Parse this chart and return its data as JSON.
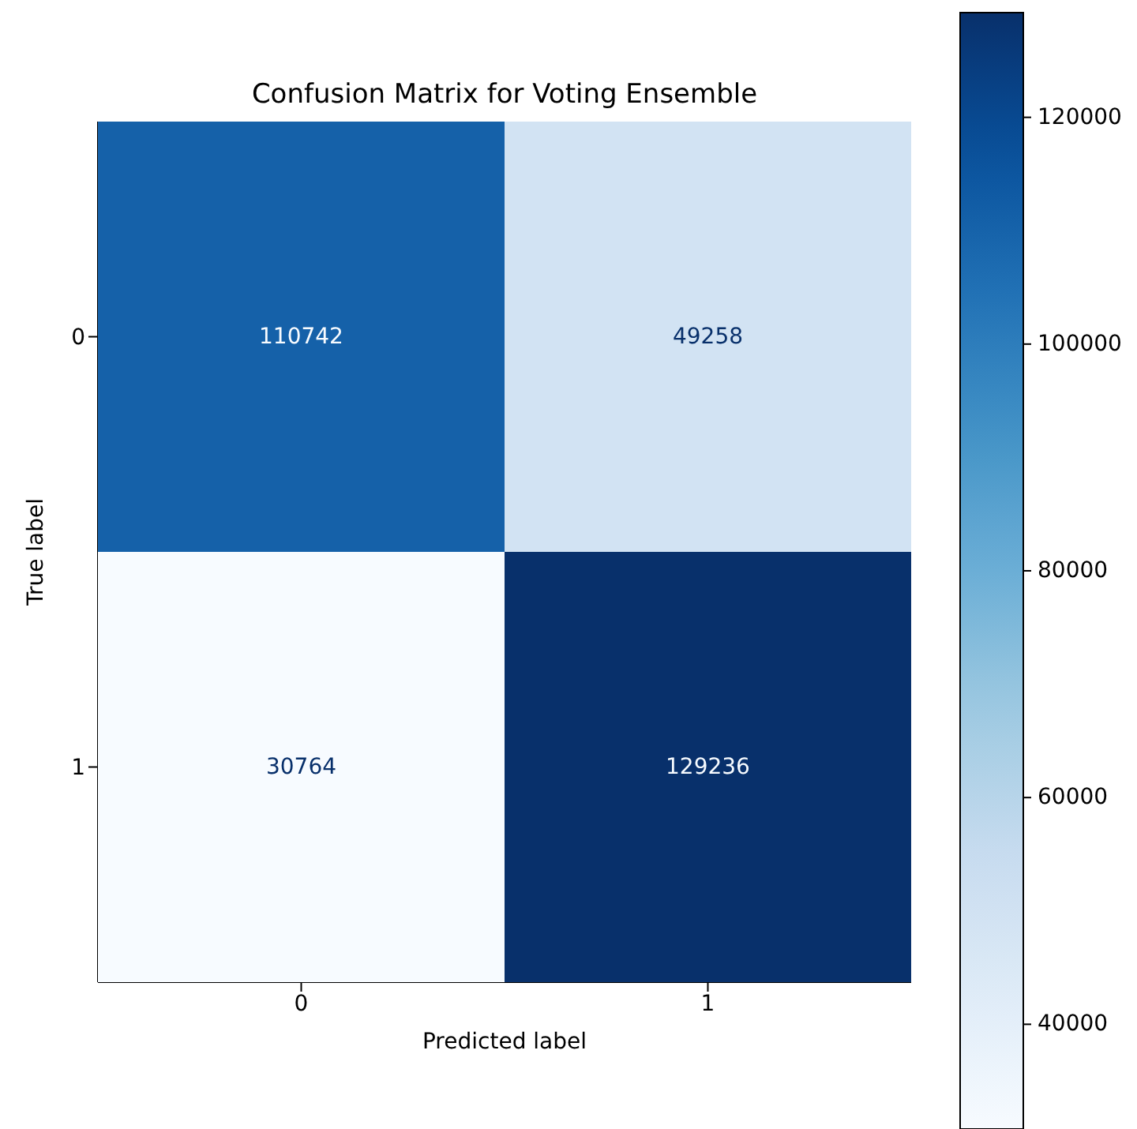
{
  "chart_data": {
    "type": "heatmap",
    "title": "Confusion Matrix for Voting Ensemble",
    "xlabel": "Predicted label",
    "ylabel": "True label",
    "categories": [
      "0",
      "1"
    ],
    "y_categories": [
      "0",
      "1"
    ],
    "cells": [
      [
        110742,
        49258
      ],
      [
        30764,
        129236
      ]
    ],
    "clim": [
      30764,
      129236
    ],
    "cticks": [
      40000,
      60000,
      80000,
      100000,
      120000
    ],
    "data_labels": true
  }
}
